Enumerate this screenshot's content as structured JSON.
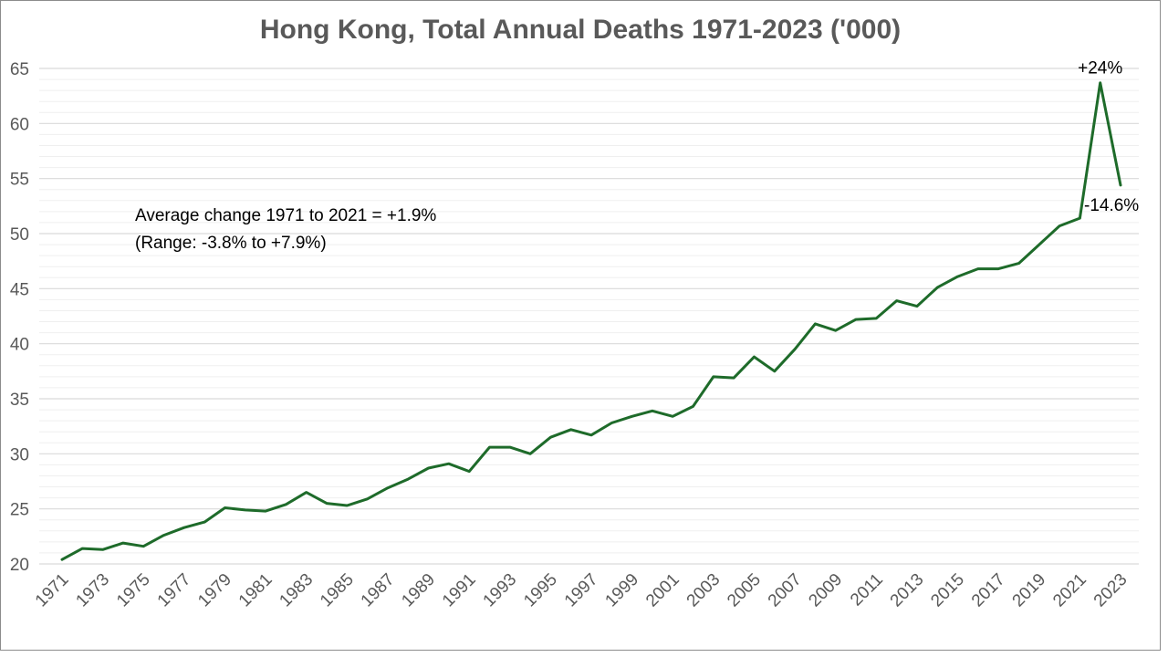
{
  "chart_data": {
    "type": "line",
    "title": "Hong Kong, Total Annual Deaths 1971-2023 ('000)",
    "xlabel": "",
    "ylabel": "",
    "ylim": [
      20,
      65
    ],
    "y_ticks": [
      20,
      25,
      30,
      35,
      40,
      45,
      50,
      55,
      60,
      65
    ],
    "x_tick_labels": [
      "1971",
      "1973",
      "1975",
      "1977",
      "1979",
      "1981",
      "1983",
      "1985",
      "1987",
      "1989",
      "1991",
      "1993",
      "1995",
      "1997",
      "1999",
      "2001",
      "2003",
      "2005",
      "2007",
      "2009",
      "2011",
      "2013",
      "2015",
      "2017",
      "2019",
      "2021",
      "2023"
    ],
    "grid": true,
    "legend": "none",
    "line_color": "#1e6b2a",
    "series": [
      {
        "x": [
          1971,
          1972,
          1973,
          1974,
          1975,
          1976,
          1977,
          1978,
          1979,
          1980,
          1981,
          1982,
          1983,
          1984,
          1985,
          1986,
          1987,
          1988,
          1989,
          1990,
          1991,
          1992,
          1993,
          1994,
          1995,
          1996,
          1997,
          1998,
          1999,
          2000,
          2001,
          2002,
          2003,
          2004,
          2005,
          2006,
          2007,
          2008,
          2009,
          2010,
          2011,
          2012,
          2013,
          2014,
          2015,
          2016,
          2017,
          2018,
          2019,
          2020,
          2021,
          2022,
          2023
        ],
        "values": [
          20.4,
          21.4,
          21.3,
          21.9,
          21.6,
          22.6,
          23.3,
          23.8,
          25.1,
          24.9,
          24.8,
          25.4,
          26.5,
          25.5,
          25.3,
          25.9,
          26.9,
          27.7,
          28.7,
          29.1,
          28.4,
          30.6,
          30.6,
          30.0,
          31.5,
          32.2,
          31.7,
          32.8,
          33.4,
          33.9,
          33.4,
          34.3,
          37.0,
          36.9,
          38.8,
          37.5,
          39.5,
          41.8,
          41.2,
          42.2,
          42.3,
          43.9,
          43.4,
          45.1,
          46.1,
          46.8,
          46.8,
          47.3,
          49.0,
          50.7,
          51.4,
          63.7,
          54.4
        ]
      }
    ],
    "annotations": {
      "avg_text": "Average change 1971 to 2021 = +1.9%",
      "range_text": "(Range:  -3.8% to +7.9%)",
      "peak_label": "+24%",
      "last_label": "-14.6%"
    }
  }
}
